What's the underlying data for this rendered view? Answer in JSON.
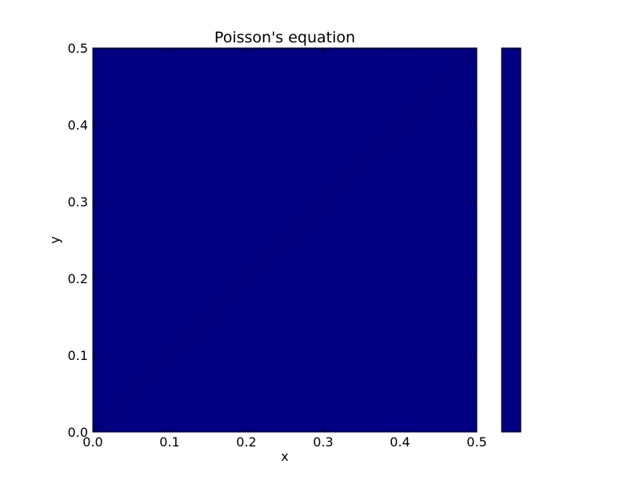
{
  "chart_data": {
    "type": "heatmap",
    "title": "Poisson's equation",
    "xlabel": "x",
    "ylabel": "y",
    "xlim": [
      0.0,
      0.5
    ],
    "ylim": [
      0.0,
      0.5
    ],
    "x_ticks": [
      0.0,
      0.1,
      0.2,
      0.3,
      0.4,
      0.5
    ],
    "y_ticks": [
      0.0,
      0.1,
      0.2,
      0.3,
      0.4,
      0.5
    ],
    "x_tick_labels": [
      "0.0",
      "0.1",
      "0.2",
      "0.3",
      "0.4",
      "0.5"
    ],
    "y_tick_labels": [
      "0.0",
      "0.1",
      "0.2",
      "0.3",
      "0.4",
      "0.5"
    ],
    "field_color": "#000080",
    "colorbar": {
      "color": "#000080"
    },
    "contour_line": {
      "x": [
        0.0,
        0.5
      ],
      "y": [
        0.0,
        0.5
      ],
      "color": "#00005a"
    },
    "grid": false
  }
}
